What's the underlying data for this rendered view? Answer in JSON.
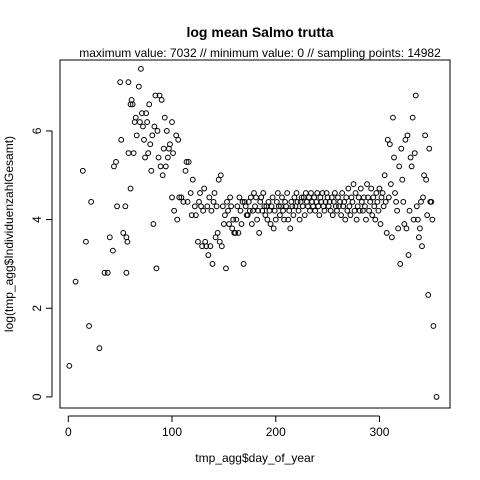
{
  "chart_data": {
    "type": "scatter",
    "title": "log mean Salmo trutta",
    "subtitle": "maximum value: 7032  //  minimum value: 0  // sampling points: 14982",
    "xlabel": "tmp_agg$day_of_year",
    "ylabel": "log(tmp_agg$IndividuenzahlGesamt)",
    "xlim": [
      -8,
      368
    ],
    "ylim": [
      -0.25,
      7.6
    ],
    "xticks": [
      "0",
      "100",
      "200",
      "300"
    ],
    "yticks": [
      "0",
      "2",
      "4",
      "6"
    ],
    "grid": false,
    "marker": "open-circle",
    "color": "#000000",
    "points": [
      [
        1,
        0.7
      ],
      [
        7,
        2.6
      ],
      [
        14,
        5.1
      ],
      [
        17,
        3.5
      ],
      [
        20,
        1.6
      ],
      [
        22,
        4.4
      ],
      [
        30,
        1.1
      ],
      [
        35,
        2.8
      ],
      [
        38,
        2.8
      ],
      [
        40,
        3.6
      ],
      [
        43,
        3.3
      ],
      [
        44,
        5.2
      ],
      [
        46,
        5.3
      ],
      [
        47,
        4.3
      ],
      [
        50,
        7.1
      ],
      [
        51,
        5.8
      ],
      [
        53,
        3.7
      ],
      [
        55,
        4.3
      ],
      [
        56,
        2.8
      ],
      [
        56,
        3.6
      ],
      [
        57,
        3.5
      ],
      [
        58,
        7.1
      ],
      [
        58,
        5.5
      ],
      [
        60,
        6.6
      ],
      [
        60,
        4.7
      ],
      [
        61,
        6.7
      ],
      [
        62,
        6.6
      ],
      [
        63,
        5.5
      ],
      [
        64,
        6.2
      ],
      [
        65,
        6.3
      ],
      [
        66,
        5.9
      ],
      [
        68,
        7.0
      ],
      [
        69,
        6.2
      ],
      [
        70,
        7.4
      ],
      [
        71,
        6.4
      ],
      [
        72,
        6.1
      ],
      [
        73,
        5.8
      ],
      [
        74,
        5.4
      ],
      [
        75,
        6.4
      ],
      [
        76,
        6.2
      ],
      [
        77,
        5.5
      ],
      [
        78,
        6.6
      ],
      [
        79,
        5.7
      ],
      [
        80,
        5.1
      ],
      [
        81,
        5.9
      ],
      [
        82,
        3.9
      ],
      [
        83,
        6.1
      ],
      [
        84,
        6.8
      ],
      [
        85,
        2.9
      ],
      [
        86,
        6.0
      ],
      [
        87,
        5.4
      ],
      [
        88,
        6.8
      ],
      [
        89,
        5.2
      ],
      [
        90,
        6.7
      ],
      [
        91,
        5.0
      ],
      [
        92,
        5.6
      ],
      [
        93,
        6.3
      ],
      [
        94,
        5.2
      ],
      [
        95,
        6.0
      ],
      [
        96,
        5.4
      ],
      [
        97,
        5.6
      ],
      [
        98,
        5.7
      ],
      [
        100,
        4.5
      ],
      [
        100,
        6.2
      ],
      [
        101,
        5.5
      ],
      [
        102,
        4.2
      ],
      [
        104,
        5.9
      ],
      [
        105,
        4.0
      ],
      [
        106,
        5.8
      ],
      [
        107,
        4.5
      ],
      [
        109,
        4.5
      ],
      [
        111,
        4.4
      ],
      [
        113,
        5.1
      ],
      [
        114,
        5.3
      ],
      [
        115,
        4.4
      ],
      [
        116,
        5.3
      ],
      [
        118,
        4.6
      ],
      [
        119,
        4.1
      ],
      [
        120,
        4.9
      ],
      [
        122,
        4.3
      ],
      [
        123,
        4.1
      ],
      [
        125,
        3.5
      ],
      [
        126,
        4.4
      ],
      [
        127,
        4.6
      ],
      [
        128,
        4.3
      ],
      [
        129,
        3.4
      ],
      [
        130,
        4.2
      ],
      [
        131,
        4.7
      ],
      [
        132,
        3.5
      ],
      [
        133,
        3.4
      ],
      [
        134,
        4.3
      ],
      [
        135,
        3.2
      ],
      [
        136,
        4.5
      ],
      [
        137,
        3.4
      ],
      [
        138,
        4.2
      ],
      [
        139,
        3.0
      ],
      [
        140,
        4.4
      ],
      [
        141,
        4.6
      ],
      [
        142,
        3.6
      ],
      [
        143,
        4.3
      ],
      [
        144,
        3.7
      ],
      [
        145,
        4.9
      ],
      [
        146,
        3.5
      ],
      [
        147,
        5.0
      ],
      [
        148,
        3.4
      ],
      [
        149,
        4.3
      ],
      [
        150,
        3.9
      ],
      [
        151,
        4.1
      ],
      [
        152,
        2.9
      ],
      [
        153,
        4.4
      ],
      [
        154,
        4.2
      ],
      [
        155,
        3.9
      ],
      [
        156,
        4.5
      ],
      [
        157,
        4.3
      ],
      [
        158,
        3.8
      ],
      [
        159,
        4.0
      ],
      [
        160,
        3.7
      ],
      [
        161,
        3.7
      ],
      [
        162,
        4.0
      ],
      [
        163,
        4.3
      ],
      [
        164,
        3.7
      ],
      [
        165,
        4.5
      ],
      [
        166,
        4.2
      ],
      [
        167,
        3.9
      ],
      [
        168,
        4.4
      ],
      [
        169,
        3.0
      ],
      [
        170,
        4.4
      ],
      [
        171,
        4.3
      ],
      [
        172,
        4.1
      ],
      [
        173,
        4.1
      ],
      [
        174,
        4.4
      ],
      [
        175,
        4.2
      ],
      [
        176,
        4.5
      ],
      [
        177,
        3.9
      ],
      [
        178,
        4.2
      ],
      [
        179,
        4.6
      ],
      [
        180,
        4.3
      ],
      [
        181,
        4.5
      ],
      [
        182,
        4.0
      ],
      [
        183,
        4.2
      ],
      [
        184,
        3.7
      ],
      [
        185,
        4.4
      ],
      [
        186,
        4.5
      ],
      [
        187,
        4.2
      ],
      [
        188,
        4.6
      ],
      [
        189,
        4.3
      ],
      [
        190,
        4.1
      ],
      [
        191,
        4.3
      ],
      [
        192,
        4.0
      ],
      [
        193,
        4.4
      ],
      [
        194,
        4.2
      ],
      [
        195,
        3.9
      ],
      [
        196,
        4.3
      ],
      [
        197,
        4.5
      ],
      [
        198,
        3.8
      ],
      [
        199,
        4.2
      ],
      [
        200,
        4.0
      ],
      [
        201,
        4.4
      ],
      [
        202,
        4.6
      ],
      [
        203,
        4.3
      ],
      [
        204,
        4.1
      ],
      [
        205,
        4.3
      ],
      [
        206,
        4.5
      ],
      [
        207,
        4.2
      ],
      [
        208,
        4.0
      ],
      [
        209,
        4.4
      ],
      [
        210,
        4.3
      ],
      [
        211,
        4.6
      ],
      [
        212,
        4.0
      ],
      [
        213,
        4.2
      ],
      [
        214,
        3.8
      ],
      [
        215,
        4.4
      ],
      [
        216,
        4.3
      ],
      [
        217,
        4.1
      ],
      [
        218,
        4.5
      ],
      [
        219,
        4.3
      ],
      [
        220,
        4.6
      ],
      [
        221,
        4.4
      ],
      [
        222,
        4.2
      ],
      [
        223,
        4.0
      ],
      [
        224,
        4.4
      ],
      [
        225,
        4.5
      ],
      [
        226,
        4.3
      ],
      [
        227,
        4.5
      ],
      [
        228,
        4.1
      ],
      [
        229,
        4.6
      ],
      [
        230,
        4.4
      ],
      [
        231,
        4.3
      ],
      [
        232,
        4.5
      ],
      [
        233,
        4.2
      ],
      [
        234,
        4.6
      ],
      [
        235,
        4.4
      ],
      [
        236,
        4.3
      ],
      [
        237,
        4.5
      ],
      [
        238,
        4.2
      ],
      [
        239,
        4.4
      ],
      [
        240,
        4.6
      ],
      [
        241,
        4.3
      ],
      [
        242,
        4.1
      ],
      [
        243,
        4.5
      ],
      [
        244,
        4.4
      ],
      [
        245,
        4.6
      ],
      [
        246,
        4.3
      ],
      [
        247,
        4.2
      ],
      [
        248,
        4.4
      ],
      [
        249,
        4.6
      ],
      [
        250,
        4.5
      ],
      [
        251,
        4.3
      ],
      [
        252,
        4.4
      ],
      [
        253,
        4.2
      ],
      [
        254,
        4.5
      ],
      [
        255,
        4.1
      ],
      [
        256,
        4.4
      ],
      [
        257,
        4.6
      ],
      [
        258,
        4.3
      ],
      [
        259,
        4.2
      ],
      [
        260,
        4.5
      ],
      [
        261,
        4.3
      ],
      [
        262,
        4.4
      ],
      [
        263,
        4.1
      ],
      [
        264,
        4.6
      ],
      [
        265,
        4.3
      ],
      [
        266,
        4.4
      ],
      [
        267,
        4.0
      ],
      [
        268,
        4.5
      ],
      [
        269,
        4.2
      ],
      [
        270,
        4.7
      ],
      [
        271,
        4.3
      ],
      [
        272,
        4.1
      ],
      [
        273,
        4.5
      ],
      [
        274,
        4.4
      ],
      [
        275,
        4.8
      ],
      [
        276,
        4.2
      ],
      [
        277,
        4.6
      ],
      [
        278,
        4.0
      ],
      [
        279,
        4.3
      ],
      [
        280,
        4.5
      ],
      [
        281,
        4.2
      ],
      [
        282,
        4.7
      ],
      [
        283,
        4.4
      ],
      [
        284,
        4.2
      ],
      [
        285,
        4.5
      ],
      [
        286,
        4.3
      ],
      [
        287,
        4.0
      ],
      [
        288,
        4.8
      ],
      [
        289,
        4.5
      ],
      [
        290,
        4.2
      ],
      [
        291,
        4.4
      ],
      [
        292,
        4.7
      ],
      [
        293,
        4.1
      ],
      [
        294,
        4.5
      ],
      [
        295,
        4.3
      ],
      [
        296,
        4.0
      ],
      [
        297,
        4.6
      ],
      [
        298,
        4.4
      ],
      [
        299,
        4.2
      ],
      [
        300,
        4.7
      ],
      [
        301,
        3.9
      ],
      [
        302,
        4.5
      ],
      [
        303,
        4.6
      ],
      [
        304,
        4.3
      ],
      [
        305,
        5.0
      ],
      [
        306,
        4.4
      ],
      [
        307,
        3.7
      ],
      [
        308,
        5.8
      ],
      [
        309,
        4.5
      ],
      [
        310,
        5.7
      ],
      [
        311,
        4.8
      ],
      [
        312,
        3.6
      ],
      [
        313,
        6.3
      ],
      [
        314,
        5.4
      ],
      [
        315,
        4.6
      ],
      [
        316,
        4.4
      ],
      [
        317,
        4.2
      ],
      [
        318,
        3.8
      ],
      [
        319,
        5.2
      ],
      [
        320,
        3.0
      ],
      [
        321,
        5.6
      ],
      [
        322,
        4.9
      ],
      [
        323,
        4.4
      ],
      [
        324,
        3.9
      ],
      [
        325,
        5.8
      ],
      [
        326,
        3.8
      ],
      [
        327,
        5.9
      ],
      [
        328,
        3.2
      ],
      [
        329,
        4.2
      ],
      [
        330,
        5.4
      ],
      [
        331,
        5.2
      ],
      [
        332,
        6.3
      ],
      [
        333,
        4.0
      ],
      [
        334,
        5.5
      ],
      [
        335,
        6.8
      ],
      [
        336,
        4.3
      ],
      [
        337,
        4.0
      ],
      [
        338,
        3.6
      ],
      [
        339,
        3.8
      ],
      [
        340,
        4.4
      ],
      [
        341,
        3.4
      ],
      [
        342,
        4.5
      ],
      [
        343,
        5.0
      ],
      [
        344,
        5.9
      ],
      [
        345,
        4.9
      ],
      [
        346,
        4.1
      ],
      [
        347,
        2.3
      ],
      [
        348,
        5.6
      ],
      [
        349,
        4.4
      ],
      [
        350,
        4.4
      ],
      [
        351,
        4.0
      ],
      [
        352,
        1.6
      ],
      [
        355,
        0.0
      ]
    ]
  }
}
